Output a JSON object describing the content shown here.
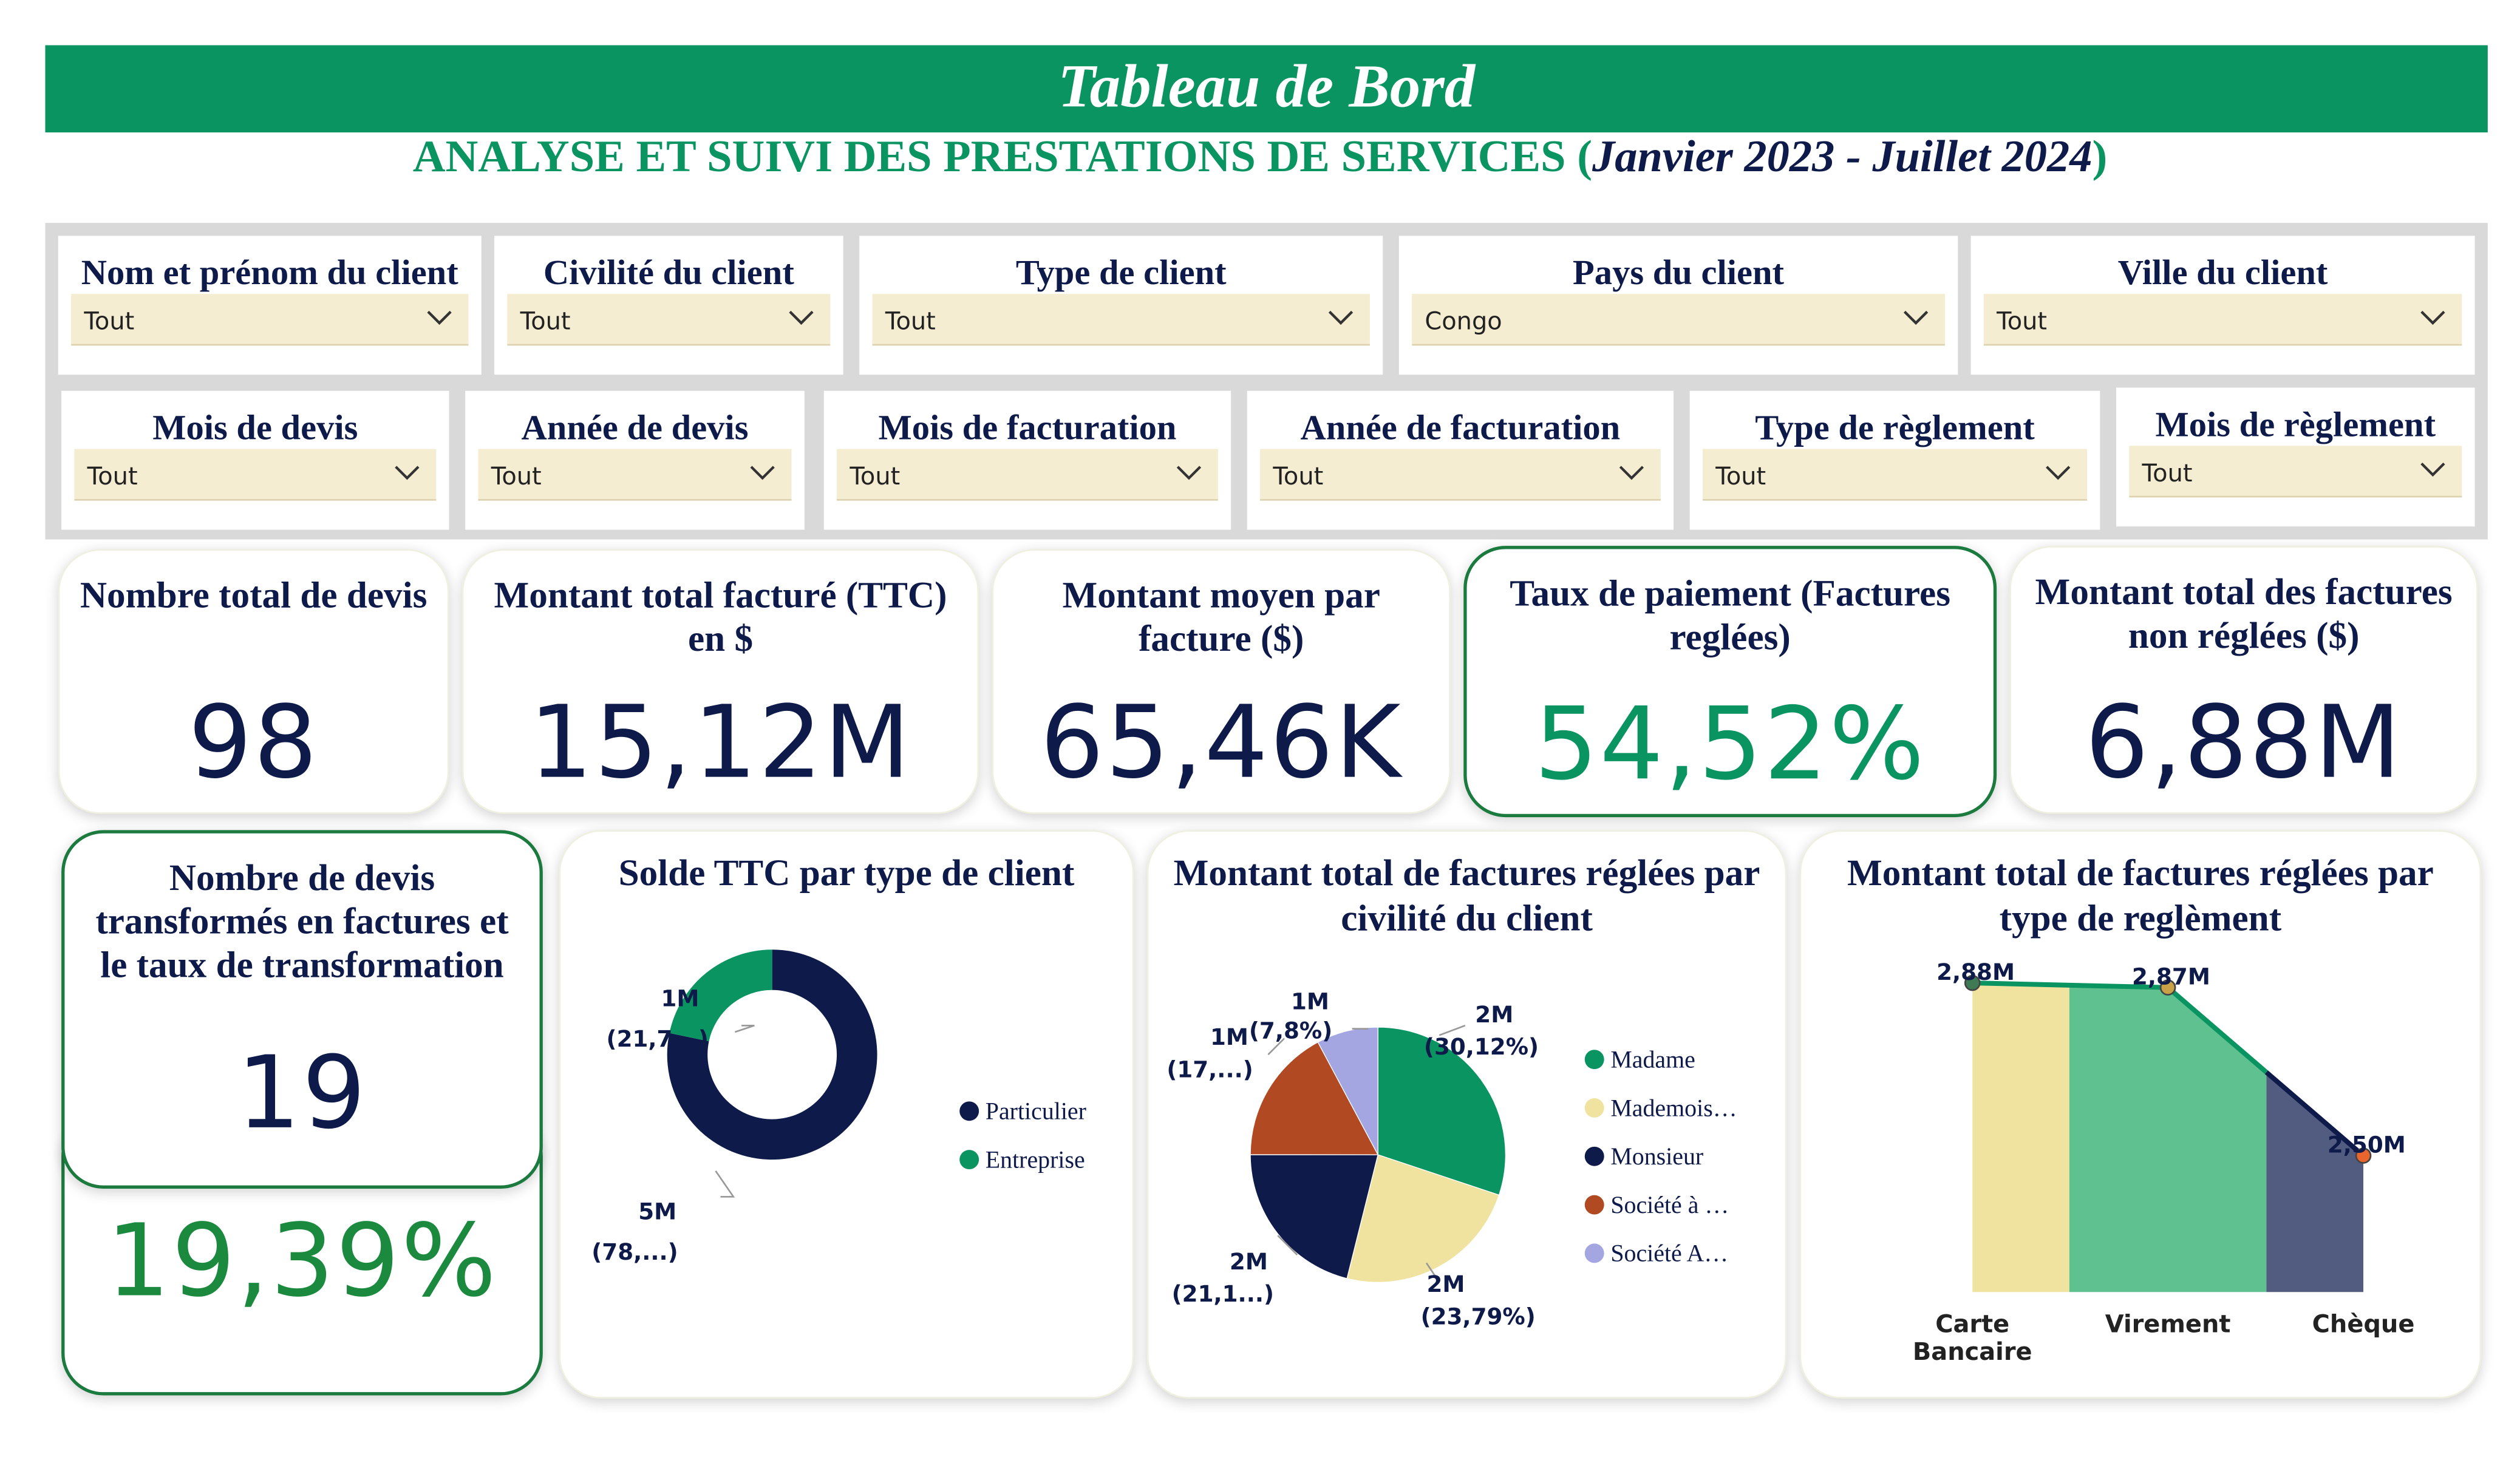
{
  "header": {
    "title": "Tableau de Bord",
    "subtitle_main": "ANALYSE ET SUIVI DES PRESTATIONS DE SERVICES (",
    "subtitle_period": "Janvier 2023 - Juillet 2024",
    "subtitle_close": ")"
  },
  "filters": [
    {
      "label": "Nom et prénom du client",
      "value": "Tout"
    },
    {
      "label": "Civilité du client",
      "value": "Tout"
    },
    {
      "label": "Type de client",
      "value": "Tout"
    },
    {
      "label": "Pays du client",
      "value": "Congo"
    },
    {
      "label": "Ville du client",
      "value": "Tout"
    },
    {
      "label": "Mois de devis",
      "value": "Tout"
    },
    {
      "label": "Année de devis",
      "value": "Tout"
    },
    {
      "label": "Mois de facturation",
      "value": "Tout"
    },
    {
      "label": "Année de facturation",
      "value": "Tout"
    },
    {
      "label": "Type de règlement",
      "value": "Tout"
    },
    {
      "label": "Mois de règlement",
      "value": "Tout"
    }
  ],
  "kpis": [
    {
      "title": "Nombre total de devis",
      "value": "98"
    },
    {
      "title": "Montant total facturé (TTC) en $",
      "value": "15,12M"
    },
    {
      "title": "Montant moyen par facture ($)",
      "value": "65,46K"
    },
    {
      "title": "Taux de paiement (Factures reglées)",
      "value": "54,52%"
    },
    {
      "title": "Montant total des factures non réglées ($)",
      "value": "6,88M"
    }
  ],
  "conversion": {
    "title": "Nombre de devis transformés en factures et le taux de transformation",
    "count": "19",
    "rate": "19,39%"
  },
  "colors": {
    "green": "#0a9462",
    "navy": "#0d1a4a",
    "cream": "#f5edd1",
    "rust": "#b14a22",
    "lavender": "#a3a6e0",
    "lightgreen": "#5ec18f",
    "khaki": "#f0e3a0"
  },
  "chart_data": [
    {
      "type": "pie",
      "subtype": "donut",
      "title": "Solde TTC par type de client",
      "categories": [
        "Particulier",
        "Entreprise"
      ],
      "values": [
        78.3,
        21.7
      ],
      "data_labels": [
        {
          "value": "5M",
          "pct": "(78,...)"
        },
        {
          "value": "1M",
          "pct": "(21,7...)"
        }
      ],
      "legend": "right"
    },
    {
      "type": "pie",
      "title": "Montant total de factures réglées par civilité du client",
      "categories": [
        "Madame",
        "Mademois…",
        "Monsieur",
        "Société à …",
        "Société A…"
      ],
      "values": [
        30.12,
        23.79,
        21.1,
        17.2,
        7.8
      ],
      "data_labels": [
        {
          "value": "2M",
          "pct": "(30,12%)"
        },
        {
          "value": "2M",
          "pct": "(23,79%)"
        },
        {
          "value": "2M",
          "pct": "(21,1...)"
        },
        {
          "value": "1M",
          "pct": "(17,...)"
        },
        {
          "value": "1M",
          "pct": "(7,8%)"
        }
      ],
      "legend": "right"
    },
    {
      "type": "area",
      "title": "Montant total de factures réglées par type de reglèment",
      "categories": [
        "Carte Bancaire",
        "Virement",
        "Chèque"
      ],
      "values": [
        2.88,
        2.87,
        2.5
      ],
      "data_labels": [
        "2,88M",
        "2,87M",
        "2,50M"
      ],
      "category_labels": [
        [
          "Carte",
          "Bancaire"
        ],
        [
          "Virement"
        ],
        [
          "Chèque"
        ]
      ],
      "ylim": [
        2.2,
        2.9
      ]
    }
  ]
}
